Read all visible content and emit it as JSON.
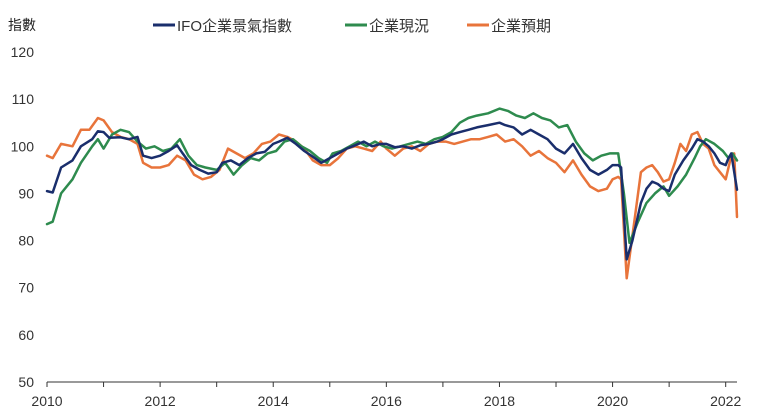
{
  "chart_data": {
    "type": "line",
    "title": "",
    "ylabel": "指數",
    "xlabel": "",
    "ylim": [
      50,
      120
    ],
    "yticks": [
      50,
      60,
      70,
      80,
      90,
      100,
      110,
      120
    ],
    "xlim": [
      2010.0,
      2022.2
    ],
    "xticks": [
      "2010",
      "2012",
      "2014",
      "2016",
      "2018",
      "2020",
      "2022"
    ],
    "grid": false,
    "legend_position": "top-center",
    "series": [
      {
        "name": "IFO企業景氣指數",
        "color": "#1a2e6c",
        "points": [
          [
            2010.0,
            90.5
          ],
          [
            2010.1,
            90.2
          ],
          [
            2010.25,
            95.5
          ],
          [
            2010.45,
            97.0
          ],
          [
            2010.6,
            100.0
          ],
          [
            2010.8,
            101.5
          ],
          [
            2010.9,
            103.2
          ],
          [
            2011.0,
            103.0
          ],
          [
            2011.1,
            101.8
          ],
          [
            2011.3,
            101.9
          ],
          [
            2011.45,
            101.5
          ],
          [
            2011.6,
            102.0
          ],
          [
            2011.7,
            98.0
          ],
          [
            2011.85,
            97.5
          ],
          [
            2012.0,
            98.0
          ],
          [
            2012.15,
            99.0
          ],
          [
            2012.3,
            100.2
          ],
          [
            2012.4,
            98.5
          ],
          [
            2012.55,
            96.0
          ],
          [
            2012.7,
            95.0
          ],
          [
            2012.85,
            94.2
          ],
          [
            2013.0,
            94.5
          ],
          [
            2013.1,
            96.5
          ],
          [
            2013.25,
            97.0
          ],
          [
            2013.4,
            96.0
          ],
          [
            2013.55,
            97.5
          ],
          [
            2013.7,
            98.5
          ],
          [
            2013.85,
            98.8
          ],
          [
            2014.0,
            100.5
          ],
          [
            2014.1,
            101.0
          ],
          [
            2014.25,
            101.8
          ],
          [
            2014.4,
            100.5
          ],
          [
            2014.55,
            99.0
          ],
          [
            2014.7,
            97.8
          ],
          [
            2014.85,
            96.5
          ],
          [
            2015.0,
            97.5
          ],
          [
            2015.15,
            98.5
          ],
          [
            2015.3,
            99.5
          ],
          [
            2015.45,
            100.2
          ],
          [
            2015.6,
            101.0
          ],
          [
            2015.75,
            100.0
          ],
          [
            2015.9,
            100.5
          ],
          [
            2016.0,
            100.5
          ],
          [
            2016.15,
            99.8
          ],
          [
            2016.3,
            100.0
          ],
          [
            2016.45,
            99.5
          ],
          [
            2016.6,
            100.2
          ],
          [
            2016.75,
            100.5
          ],
          [
            2016.9,
            101.0
          ],
          [
            2017.0,
            101.5
          ],
          [
            2017.15,
            102.5
          ],
          [
            2017.3,
            103.0
          ],
          [
            2017.45,
            103.5
          ],
          [
            2017.6,
            104.0
          ],
          [
            2017.8,
            104.5
          ],
          [
            2018.0,
            105.0
          ],
          [
            2018.1,
            104.5
          ],
          [
            2018.25,
            104.0
          ],
          [
            2018.4,
            102.5
          ],
          [
            2018.55,
            103.5
          ],
          [
            2018.7,
            102.5
          ],
          [
            2018.85,
            101.5
          ],
          [
            2019.0,
            99.5
          ],
          [
            2019.15,
            98.5
          ],
          [
            2019.3,
            100.5
          ],
          [
            2019.45,
            97.5
          ],
          [
            2019.6,
            95.0
          ],
          [
            2019.75,
            94.0
          ],
          [
            2019.9,
            95.0
          ],
          [
            2020.0,
            96.0
          ],
          [
            2020.1,
            96.0
          ],
          [
            2020.15,
            95.5
          ],
          [
            2020.25,
            76.0
          ],
          [
            2020.35,
            80.0
          ],
          [
            2020.5,
            88.0
          ],
          [
            2020.6,
            91.0
          ],
          [
            2020.7,
            92.5
          ],
          [
            2020.8,
            92.0
          ],
          [
            2020.9,
            91.0
          ],
          [
            2021.0,
            90.5
          ],
          [
            2021.1,
            94.0
          ],
          [
            2021.25,
            97.0
          ],
          [
            2021.4,
            99.5
          ],
          [
            2021.5,
            101.5
          ],
          [
            2021.6,
            101.0
          ],
          [
            2021.7,
            100.0
          ],
          [
            2021.8,
            98.5
          ],
          [
            2021.9,
            96.5
          ],
          [
            2022.0,
            96.0
          ],
          [
            2022.05,
            97.5
          ],
          [
            2022.1,
            98.5
          ],
          [
            2022.2,
            90.8
          ]
        ]
      },
      {
        "name": "企業現況",
        "color": "#2e8b4e",
        "points": [
          [
            2010.0,
            83.5
          ],
          [
            2010.1,
            84.0
          ],
          [
            2010.25,
            90.0
          ],
          [
            2010.45,
            93.0
          ],
          [
            2010.6,
            96.5
          ],
          [
            2010.8,
            100.0
          ],
          [
            2010.9,
            101.5
          ],
          [
            2011.0,
            99.5
          ],
          [
            2011.15,
            102.5
          ],
          [
            2011.3,
            103.5
          ],
          [
            2011.45,
            103.0
          ],
          [
            2011.6,
            101.0
          ],
          [
            2011.75,
            99.5
          ],
          [
            2011.9,
            100.0
          ],
          [
            2012.05,
            99.0
          ],
          [
            2012.2,
            99.5
          ],
          [
            2012.35,
            101.5
          ],
          [
            2012.5,
            98.0
          ],
          [
            2012.65,
            96.0
          ],
          [
            2012.8,
            95.5
          ],
          [
            2013.0,
            95.0
          ],
          [
            2013.15,
            96.5
          ],
          [
            2013.3,
            94.0
          ],
          [
            2013.45,
            96.0
          ],
          [
            2013.6,
            97.5
          ],
          [
            2013.75,
            97.0
          ],
          [
            2013.9,
            98.5
          ],
          [
            2014.05,
            99.0
          ],
          [
            2014.2,
            101.0
          ],
          [
            2014.35,
            101.5
          ],
          [
            2014.5,
            100.0
          ],
          [
            2014.65,
            99.0
          ],
          [
            2014.8,
            97.5
          ],
          [
            2014.95,
            96.5
          ],
          [
            2015.05,
            98.5
          ],
          [
            2015.2,
            99.0
          ],
          [
            2015.35,
            100.0
          ],
          [
            2015.5,
            101.0
          ],
          [
            2015.65,
            100.0
          ],
          [
            2015.8,
            101.0
          ],
          [
            2015.95,
            100.0
          ],
          [
            2016.1,
            99.5
          ],
          [
            2016.25,
            100.0
          ],
          [
            2016.4,
            100.5
          ],
          [
            2016.55,
            101.0
          ],
          [
            2016.7,
            100.5
          ],
          [
            2016.85,
            101.5
          ],
          [
            2017.0,
            102.0
          ],
          [
            2017.15,
            103.0
          ],
          [
            2017.3,
            105.0
          ],
          [
            2017.45,
            106.0
          ],
          [
            2017.6,
            106.5
          ],
          [
            2017.8,
            107.0
          ],
          [
            2018.0,
            108.0
          ],
          [
            2018.15,
            107.5
          ],
          [
            2018.3,
            106.5
          ],
          [
            2018.45,
            106.0
          ],
          [
            2018.6,
            107.0
          ],
          [
            2018.75,
            106.0
          ],
          [
            2018.9,
            105.5
          ],
          [
            2019.05,
            104.0
          ],
          [
            2019.2,
            104.5
          ],
          [
            2019.35,
            101.0
          ],
          [
            2019.5,
            98.5
          ],
          [
            2019.65,
            97.0
          ],
          [
            2019.8,
            98.0
          ],
          [
            2019.95,
            98.5
          ],
          [
            2020.1,
            98.5
          ],
          [
            2020.2,
            90.0
          ],
          [
            2020.3,
            79.5
          ],
          [
            2020.45,
            84.0
          ],
          [
            2020.6,
            88.0
          ],
          [
            2020.75,
            90.0
          ],
          [
            2020.9,
            91.5
          ],
          [
            2021.0,
            89.5
          ],
          [
            2021.15,
            91.5
          ],
          [
            2021.3,
            94.0
          ],
          [
            2021.45,
            97.5
          ],
          [
            2021.55,
            100.0
          ],
          [
            2021.65,
            101.5
          ],
          [
            2021.8,
            100.5
          ],
          [
            2021.95,
            99.0
          ],
          [
            2022.05,
            97.5
          ],
          [
            2022.12,
            98.5
          ],
          [
            2022.2,
            97.0
          ]
        ]
      },
      {
        "name": "企業預期",
        "color": "#e8743b",
        "points": [
          [
            2010.0,
            98.0
          ],
          [
            2010.1,
            97.5
          ],
          [
            2010.25,
            100.5
          ],
          [
            2010.45,
            100.0
          ],
          [
            2010.6,
            103.5
          ],
          [
            2010.75,
            103.5
          ],
          [
            2010.9,
            106.0
          ],
          [
            2011.0,
            105.5
          ],
          [
            2011.15,
            103.0
          ],
          [
            2011.3,
            102.0
          ],
          [
            2011.45,
            101.5
          ],
          [
            2011.6,
            100.5
          ],
          [
            2011.7,
            96.5
          ],
          [
            2011.85,
            95.5
          ],
          [
            2012.0,
            95.5
          ],
          [
            2012.15,
            96.0
          ],
          [
            2012.3,
            98.0
          ],
          [
            2012.45,
            97.0
          ],
          [
            2012.6,
            94.0
          ],
          [
            2012.75,
            93.0
          ],
          [
            2012.9,
            93.5
          ],
          [
            2013.05,
            95.0
          ],
          [
            2013.2,
            99.5
          ],
          [
            2013.35,
            98.5
          ],
          [
            2013.5,
            97.5
          ],
          [
            2013.65,
            98.5
          ],
          [
            2013.8,
            100.5
          ],
          [
            2013.95,
            101.0
          ],
          [
            2014.1,
            102.5
          ],
          [
            2014.25,
            102.0
          ],
          [
            2014.4,
            101.0
          ],
          [
            2014.55,
            99.5
          ],
          [
            2014.7,
            97.0
          ],
          [
            2014.85,
            96.0
          ],
          [
            2015.0,
            96.0
          ],
          [
            2015.15,
            97.5
          ],
          [
            2015.3,
            99.5
          ],
          [
            2015.45,
            100.0
          ],
          [
            2015.6,
            99.5
          ],
          [
            2015.75,
            99.0
          ],
          [
            2015.9,
            101.0
          ],
          [
            2016.0,
            99.5
          ],
          [
            2016.15,
            98.0
          ],
          [
            2016.3,
            99.5
          ],
          [
            2016.45,
            100.0
          ],
          [
            2016.6,
            99.0
          ],
          [
            2016.75,
            100.5
          ],
          [
            2016.9,
            101.0
          ],
          [
            2017.05,
            101.0
          ],
          [
            2017.2,
            100.5
          ],
          [
            2017.35,
            101.0
          ],
          [
            2017.5,
            101.5
          ],
          [
            2017.65,
            101.5
          ],
          [
            2017.8,
            102.0
          ],
          [
            2017.95,
            102.5
          ],
          [
            2018.1,
            101.0
          ],
          [
            2018.25,
            101.5
          ],
          [
            2018.4,
            100.0
          ],
          [
            2018.55,
            98.0
          ],
          [
            2018.7,
            99.0
          ],
          [
            2018.85,
            97.5
          ],
          [
            2019.0,
            96.5
          ],
          [
            2019.15,
            94.5
          ],
          [
            2019.3,
            97.0
          ],
          [
            2019.45,
            94.0
          ],
          [
            2019.6,
            91.5
          ],
          [
            2019.75,
            90.5
          ],
          [
            2019.9,
            91.0
          ],
          [
            2020.0,
            93.0
          ],
          [
            2020.1,
            93.5
          ],
          [
            2020.15,
            93.0
          ],
          [
            2020.25,
            72.0
          ],
          [
            2020.35,
            81.0
          ],
          [
            2020.5,
            94.5
          ],
          [
            2020.6,
            95.5
          ],
          [
            2020.7,
            96.0
          ],
          [
            2020.8,
            94.5
          ],
          [
            2020.9,
            92.5
          ],
          [
            2021.0,
            93.0
          ],
          [
            2021.1,
            96.5
          ],
          [
            2021.2,
            100.5
          ],
          [
            2021.3,
            99.0
          ],
          [
            2021.4,
            102.5
          ],
          [
            2021.5,
            103.0
          ],
          [
            2021.6,
            100.5
          ],
          [
            2021.7,
            99.5
          ],
          [
            2021.8,
            96.0
          ],
          [
            2021.9,
            94.5
          ],
          [
            2022.0,
            93.0
          ],
          [
            2022.08,
            97.0
          ],
          [
            2022.15,
            98.5
          ],
          [
            2022.2,
            85.0
          ]
        ]
      }
    ]
  }
}
